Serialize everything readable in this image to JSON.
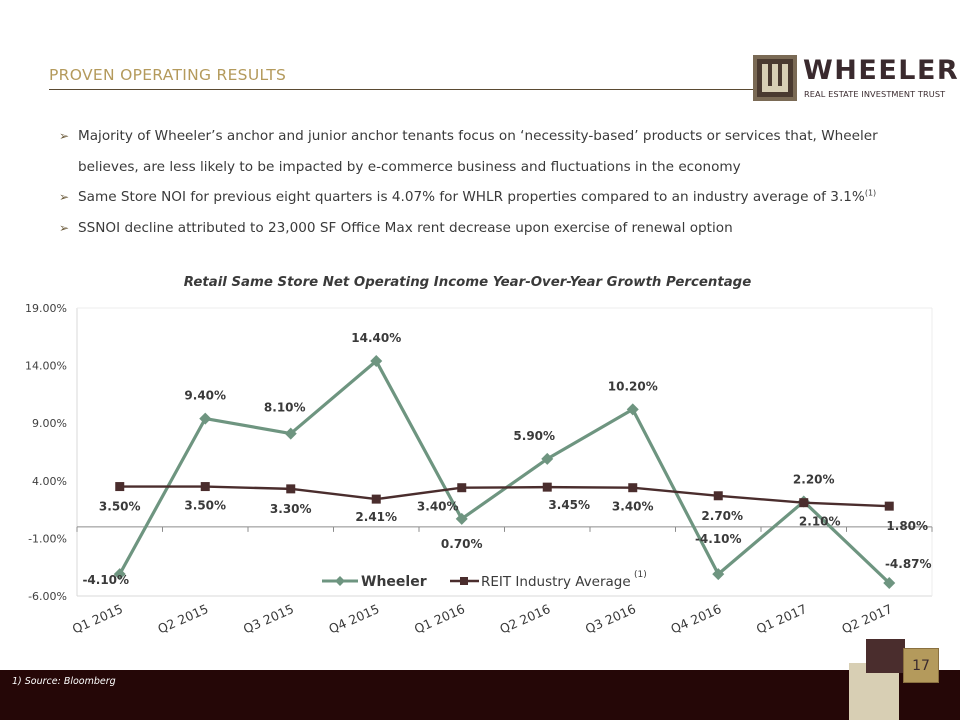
{
  "header": {
    "section_title": "PROVEN OPERATING RESULTS",
    "logo_name": "WHEELER",
    "logo_tagline": "REAL ESTATE INVESTMENT TRUST"
  },
  "bullets": [
    {
      "text": "Majority of Wheeler’s anchor and junior anchor tenants focus on ‘necessity-based’ products or services that, Wheeler believes, are less likely to be impacted by e-commerce business and fluctuations in the economy"
    },
    {
      "text": "Same Store NOI for previous eight quarters is 4.07% for WHLR properties compared to an industry average of 3.1%",
      "sup": "(1)"
    },
    {
      "text": "SSNOI decline attributed to 23,000 SF Office Max rent decrease upon exercise of renewal option"
    }
  ],
  "chart_data": {
    "type": "line",
    "title": "Retail Same Store Net Operating Income Year-Over-Year Growth Percentage",
    "categories": [
      "Q1 2015",
      "Q2 2015",
      "Q3 2015",
      "Q4 2015",
      "Q1 2016",
      "Q2 2016",
      "Q3 2016",
      "Q4 2016",
      "Q1 2017",
      "Q2 2017"
    ],
    "y_ticks": [
      "19.00%",
      "14.00%",
      "9.00%",
      "4.00%",
      "-1.00%",
      "-6.00%"
    ],
    "ylim": [
      -6,
      19
    ],
    "series": [
      {
        "name": "Wheeler",
        "color": "#6e9580",
        "marker": "diamond",
        "values": [
          -4.1,
          9.4,
          8.1,
          14.4,
          0.7,
          5.9,
          10.2,
          -4.1,
          2.2,
          -4.87
        ],
        "labels": [
          "-4.10%",
          "9.40%",
          "8.10%",
          "14.40%",
          "0.70%",
          "5.90%",
          "10.20%",
          "-4.10%",
          "2.20%",
          "-4.87%"
        ]
      },
      {
        "name": "REIT Industry Average",
        "color": "#4a2d2d",
        "marker": "square",
        "values": [
          3.5,
          3.5,
          3.3,
          2.41,
          3.4,
          3.45,
          3.4,
          2.7,
          2.1,
          1.8
        ],
        "labels": [
          "3.50%",
          "3.50%",
          "3.30%",
          "2.41%",
          "3.40%",
          "3.45%",
          "3.40%",
          "2.70%",
          "2.10%",
          "1.80%"
        ]
      }
    ],
    "legend_note": "(1)",
    "legend_position": "bottom-center",
    "grid": false
  },
  "footer": {
    "footnote": "1)     Source: Bloomberg",
    "page_number": "17"
  },
  "colors": {
    "accent_gold": "#b49a5c",
    "dark_maroon": "#250707",
    "deco_maroon": "#4a2d2d",
    "deco_beige": "#d8cfb4"
  }
}
